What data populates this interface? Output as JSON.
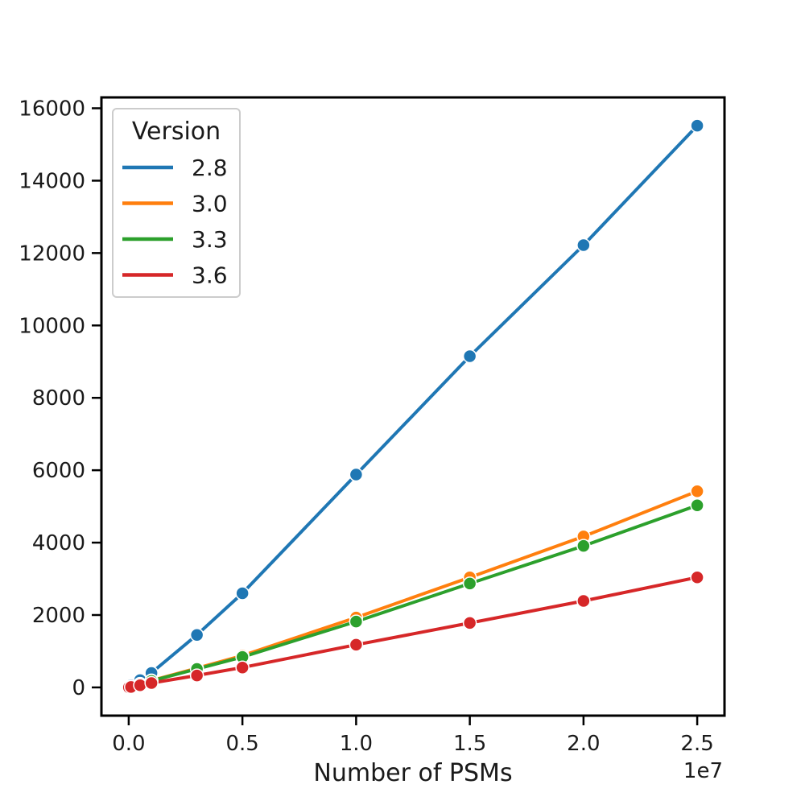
{
  "chart_data": {
    "type": "line",
    "title": "",
    "xlabel": "Number of PSMs",
    "ylabel": "",
    "x_offset_label": "1e7",
    "xlim": [
      -0.12,
      2.62
    ],
    "ylim": [
      -780,
      16300
    ],
    "x_ticks": [
      0.0,
      0.5,
      1.0,
      1.5,
      2.0,
      2.5
    ],
    "x_tick_labels": [
      "0.0",
      "0.5",
      "1.0",
      "1.5",
      "2.0",
      "2.5"
    ],
    "y_ticks": [
      0,
      2000,
      4000,
      6000,
      8000,
      10000,
      12000,
      14000,
      16000
    ],
    "y_tick_labels": [
      "0",
      "2000",
      "4000",
      "6000",
      "8000",
      "10000",
      "12000",
      "14000",
      "16000"
    ],
    "grid": false,
    "legend": {
      "title": "Version",
      "position": "top-left"
    },
    "x": [
      0.001,
      0.01,
      0.05,
      0.1,
      0.3,
      0.5,
      1.0,
      1.5,
      2.0,
      2.5
    ],
    "series": [
      {
        "name": "2.8",
        "color": "#1f77b4",
        "values": [
          10,
          60,
          200,
          400,
          1450,
          2600,
          5880,
          9150,
          12220,
          15520
        ]
      },
      {
        "name": "3.0",
        "color": "#ff7f0e",
        "values": [
          2,
          20,
          95,
          190,
          530,
          880,
          1930,
          3040,
          4170,
          5420
        ]
      },
      {
        "name": "3.3",
        "color": "#2ca02c",
        "values": [
          2,
          18,
          90,
          180,
          510,
          840,
          1820,
          2870,
          3910,
          5030
        ]
      },
      {
        "name": "3.6",
        "color": "#d62728",
        "values": [
          1,
          12,
          60,
          120,
          330,
          550,
          1180,
          1780,
          2390,
          3040
        ]
      }
    ]
  }
}
